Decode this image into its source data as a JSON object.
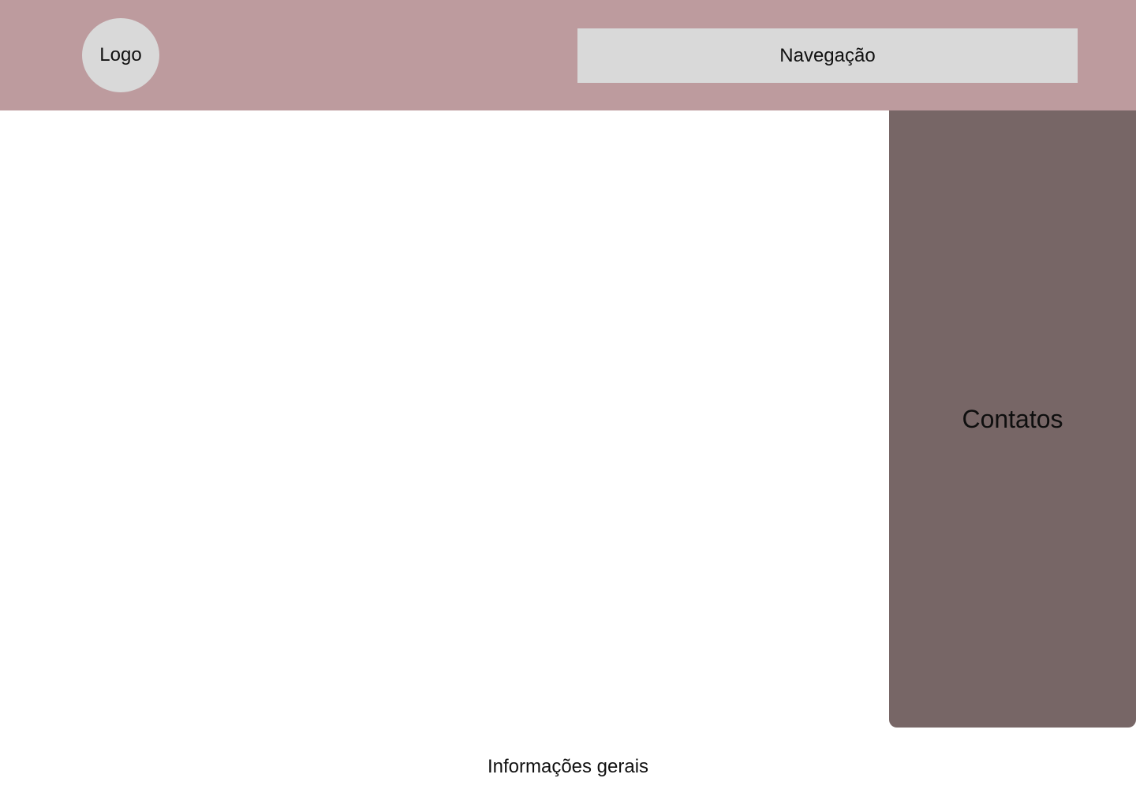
{
  "header": {
    "logo_label": "Logo",
    "navigation_label": "Navegação",
    "background_color": "#bd9b9e"
  },
  "sidebar": {
    "contacts_label": "Contatos",
    "background_color": "#776666"
  },
  "footer": {
    "info_label": "Informações gerais"
  }
}
